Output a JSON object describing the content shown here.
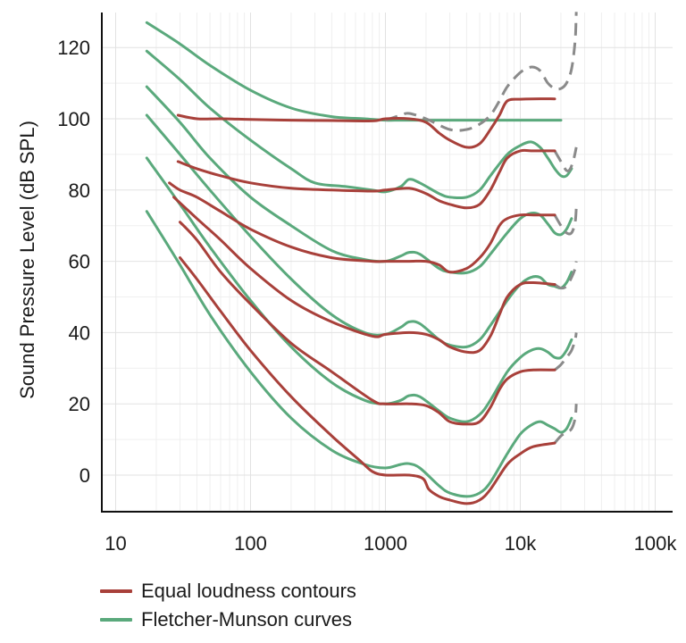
{
  "chart_data": {
    "type": "line",
    "title": "",
    "xlabel": "",
    "ylabel": "Sound Pressure Level (dB SPL)",
    "x_scale": "log",
    "xlim": [
      10,
      200000
    ],
    "ylim": [
      -10,
      130
    ],
    "x_ticks": [
      {
        "value": 10,
        "label": "10"
      },
      {
        "value": 100,
        "label": "100"
      },
      {
        "value": 1000,
        "label": "1000"
      },
      {
        "value": 10000,
        "label": "10k"
      },
      {
        "value": 100000,
        "label": "100k"
      }
    ],
    "y_ticks": [
      {
        "value": 0,
        "label": "0"
      },
      {
        "value": 20,
        "label": "20"
      },
      {
        "value": 40,
        "label": "40"
      },
      {
        "value": 60,
        "label": "60"
      },
      {
        "value": 80,
        "label": "80"
      },
      {
        "value": 100,
        "label": "100"
      },
      {
        "value": 120,
        "label": "120"
      }
    ],
    "grid": true,
    "legend_position": "bottom-left",
    "colors": {
      "equal_loudness": "#a8403a",
      "fletcher_munson": "#5aa97c",
      "extension": "#8a8a8a"
    },
    "legend": [
      {
        "label": "Equal loudness contours",
        "color": "#a8403a"
      },
      {
        "label": "Fletcher-Munson curves",
        "color": "#5aa97c"
      }
    ],
    "series": [
      {
        "group": "equal_loudness",
        "x": [
          29,
          40,
          60,
          100,
          200,
          400,
          800,
          1000,
          1500,
          2000,
          2500,
          3000,
          4000,
          5000,
          6000,
          7000,
          8000,
          10000,
          12500,
          18000
        ],
        "y": [
          101,
          100,
          100,
          99.8,
          99.6,
          99.5,
          99.4,
          100,
          100,
          99,
          96,
          94,
          92,
          93,
          97,
          101,
          105,
          105.5,
          105.6,
          105.6
        ]
      },
      {
        "group": "equal_loudness",
        "x": [
          29,
          40,
          60,
          100,
          200,
          400,
          800,
          1000,
          1500,
          2000,
          2500,
          3000,
          4000,
          5000,
          6000,
          7000,
          8000,
          10000,
          12500,
          18000
        ],
        "y": [
          88,
          86,
          84,
          82,
          80.5,
          80,
          79.7,
          80,
          80.5,
          79,
          77,
          76,
          75,
          76,
          80,
          85,
          89,
          91,
          91,
          91
        ]
      },
      {
        "group": "equal_loudness",
        "x": [
          25,
          30,
          40,
          60,
          100,
          200,
          400,
          800,
          1000,
          1500,
          2000,
          2500,
          3000,
          4000,
          5000,
          6000,
          7000,
          8000,
          10000,
          12500,
          18000
        ],
        "y": [
          82,
          80,
          78,
          74,
          69,
          64,
          61,
          60,
          60,
          60,
          60,
          59,
          57,
          58,
          61,
          65,
          70,
          72,
          73,
          73,
          73
        ]
      },
      {
        "group": "equal_loudness",
        "x": [
          27,
          40,
          60,
          100,
          200,
          400,
          800,
          1000,
          1500,
          2000,
          2500,
          3000,
          4000,
          5000,
          6000,
          7000,
          8000,
          10000,
          12500,
          18000
        ],
        "y": [
          78,
          72,
          66,
          58,
          49,
          43,
          39,
          39.5,
          40,
          39.5,
          38,
          36,
          34.5,
          35,
          39,
          45,
          50,
          53.5,
          54,
          53.5
        ]
      },
      {
        "group": "equal_loudness",
        "x": [
          30,
          40,
          60,
          100,
          200,
          400,
          800,
          1000,
          1500,
          2000,
          2500,
          3000,
          4000,
          5000,
          6000,
          7000,
          8000,
          10000,
          12500,
          18000
        ],
        "y": [
          71,
          66,
          57,
          48,
          37,
          29,
          21,
          20,
          20,
          19.5,
          17.5,
          15,
          14.3,
          15,
          19,
          24,
          27,
          29,
          29.5,
          29.5
        ]
      },
      {
        "group": "equal_loudness",
        "x": [
          30,
          40,
          60,
          100,
          200,
          400,
          650,
          800,
          1000,
          1500,
          1900,
          2100,
          2500,
          3000,
          4000,
          5000,
          6000,
          8000,
          10000,
          12500,
          18000
        ],
        "y": [
          61,
          55,
          46,
          35,
          22,
          11,
          4,
          1,
          0,
          0,
          -1,
          -4,
          -6,
          -7,
          -8,
          -7,
          -4,
          3,
          6,
          8,
          9
        ]
      },
      {
        "group": "fletcher_munson",
        "x": [
          17,
          30,
          50,
          100,
          200,
          400,
          700,
          1000,
          1300,
          2000,
          3000,
          4000,
          5000,
          6000,
          7000,
          8000,
          10000,
          12000,
          14000,
          16000,
          18000,
          20000
        ],
        "y": [
          127,
          121,
          115,
          108,
          103,
          100.6,
          100,
          99.6,
          99.6,
          99.6,
          99.6,
          99.6,
          99.6,
          99.6,
          99.6,
          99.6,
          99.6,
          99.6,
          99.6,
          99.6,
          99.6,
          99.6
        ]
      },
      {
        "group": "fletcher_munson",
        "x": [
          17,
          30,
          50,
          100,
          200,
          300,
          500,
          800,
          1000,
          1300,
          1500,
          1800,
          2500,
          3000,
          4000,
          5000,
          6000,
          8000,
          10000,
          12000,
          14000,
          16000,
          18000,
          20000,
          22000,
          24000
        ],
        "y": [
          119,
          111,
          103,
          94,
          86,
          82,
          81,
          80,
          79.5,
          81,
          83,
          82,
          79,
          78,
          78,
          80,
          84,
          90,
          92.5,
          93.5,
          92,
          89,
          86,
          84,
          84,
          86
        ]
      },
      {
        "group": "fletcher_munson",
        "x": [
          17,
          30,
          50,
          100,
          200,
          400,
          700,
          1000,
          1300,
          1500,
          1800,
          2500,
          3000,
          4000,
          5000,
          6000,
          8000,
          10000,
          12000,
          14000,
          16000,
          18000,
          20000,
          22000,
          24000
        ],
        "y": [
          109,
          99,
          89,
          78,
          70,
          63,
          60.5,
          60,
          61.5,
          62.5,
          62,
          58,
          57,
          56.8,
          58.5,
          62,
          68,
          72,
          73.5,
          73,
          70.5,
          68,
          67.5,
          69,
          72
        ]
      },
      {
        "group": "fletcher_munson",
        "x": [
          17,
          30,
          50,
          100,
          200,
          400,
          700,
          1000,
          1300,
          1500,
          1800,
          2500,
          3000,
          4000,
          5000,
          6000,
          8000,
          10000,
          12000,
          14000,
          16000,
          18000,
          20000,
          22000,
          24000
        ],
        "y": [
          101,
          90,
          80,
          67,
          55,
          45,
          40,
          39.5,
          41.5,
          43,
          42.5,
          38,
          36.5,
          36,
          38,
          42,
          49,
          53.5,
          55.5,
          55.5,
          53.5,
          53,
          52.5,
          54,
          57
        ]
      },
      {
        "group": "fletcher_munson",
        "x": [
          17,
          30,
          50,
          100,
          200,
          400,
          700,
          1000,
          1300,
          1500,
          1800,
          2500,
          3000,
          4000,
          5000,
          6000,
          8000,
          10000,
          12000,
          14000,
          16000,
          18000,
          20000,
          22000,
          24000
        ],
        "y": [
          89,
          76,
          64,
          49,
          36,
          26,
          21,
          20,
          21,
          22.3,
          22,
          18,
          16,
          15,
          17,
          21,
          29,
          33,
          35,
          35.5,
          34.5,
          33,
          33,
          35,
          38
        ]
      },
      {
        "group": "fletcher_munson",
        "x": [
          17,
          30,
          50,
          100,
          200,
          400,
          700,
          1000,
          1300,
          1500,
          1800,
          2500,
          3000,
          4000,
          5000,
          6000,
          8000,
          10000,
          12000,
          14000,
          16000,
          18000,
          20000,
          22000,
          24000
        ],
        "y": [
          74,
          59,
          45,
          29,
          16,
          7,
          3,
          2,
          3,
          3.2,
          2,
          -3,
          -5,
          -6,
          -5,
          -2,
          6,
          11.5,
          14,
          15,
          14,
          13,
          12,
          13,
          16
        ]
      },
      {
        "group": "extension",
        "x": [
          1000,
          1300,
          1500,
          2000,
          3000,
          4000,
          5000,
          6000,
          7000,
          8000,
          10000,
          12000,
          14000,
          16000,
          18000,
          20000,
          22000,
          24000,
          25500,
          26000
        ],
        "y": [
          99.6,
          101,
          101.5,
          100,
          97,
          97,
          98.5,
          101,
          105,
          109,
          113,
          114.5,
          113.5,
          110,
          108.5,
          108.5,
          110,
          114,
          122,
          130
        ]
      },
      {
        "group": "extension",
        "x": [
          18000,
          20000,
          22000,
          23500,
          25000,
          26000
        ],
        "y": [
          91,
          88,
          85.5,
          86,
          89,
          92
        ]
      },
      {
        "group": "extension",
        "x": [
          18000,
          20000,
          22000,
          24000,
          25500,
          26000
        ],
        "y": [
          73,
          70,
          68,
          68,
          71,
          75
        ]
      },
      {
        "group": "extension",
        "x": [
          18000,
          20000,
          22000,
          24000,
          25500,
          26000
        ],
        "y": [
          53.5,
          52.5,
          53,
          55.5,
          58,
          60
        ]
      },
      {
        "group": "extension",
        "x": [
          18000,
          20000,
          22000,
          24000,
          25500,
          26000
        ],
        "y": [
          29.5,
          31,
          33,
          35,
          38,
          40
        ]
      },
      {
        "group": "extension",
        "x": [
          18000,
          20000,
          22000,
          24000,
          25500,
          26000
        ],
        "y": [
          9,
          11,
          12,
          13,
          16,
          20
        ]
      }
    ]
  }
}
